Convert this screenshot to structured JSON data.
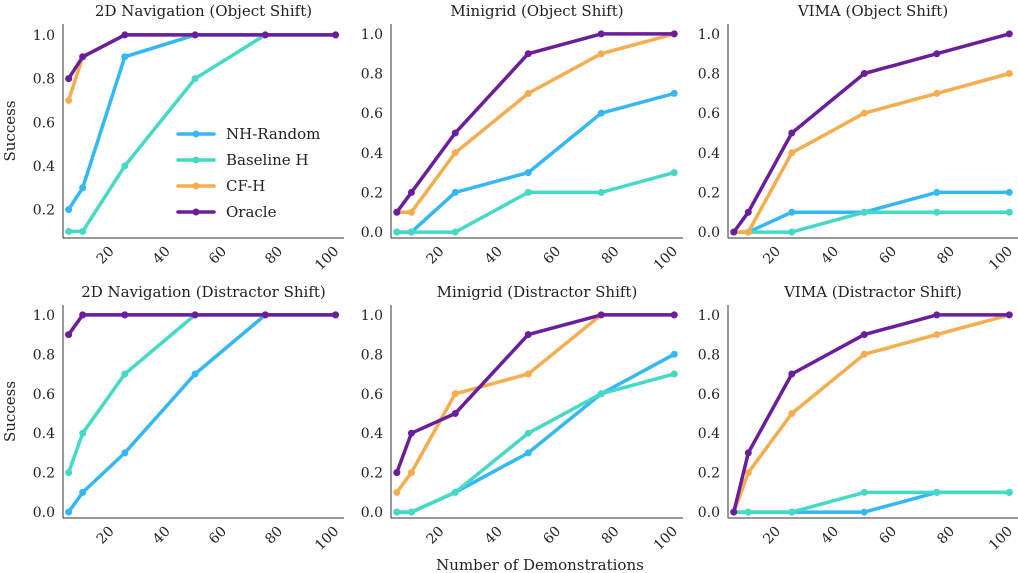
{
  "figure": {
    "shared_xlabel": "Number of Demonstrations",
    "colors": {
      "NH-Random": "#33b8f5",
      "Baseline H": "#45d9c6",
      "CF-H": "#f5ad4f",
      "Oracle": "#6a1e9c"
    }
  },
  "chart_data": [
    {
      "type": "line",
      "title": "2D Navigation (Object Shift)",
      "ylabel": "Success",
      "xlabel": "",
      "x": [
        5,
        10,
        25,
        50,
        75,
        100
      ],
      "xticks": [
        "20",
        "40",
        "60",
        "80",
        "100"
      ],
      "yticks": [
        "0.2",
        "0.4",
        "0.6",
        "0.8",
        "1.0"
      ],
      "xlim": [
        3,
        103
      ],
      "ylim": [
        0.07,
        1.05
      ],
      "legend": "center-right",
      "grid": false,
      "series": [
        {
          "name": "NH-Random",
          "values": [
            0.2,
            0.3,
            0.9,
            1.0,
            1.0,
            1.0
          ]
        },
        {
          "name": "Baseline H",
          "values": [
            0.1,
            0.1,
            0.4,
            0.8,
            1.0,
            1.0
          ]
        },
        {
          "name": "CF-H",
          "values": [
            0.7,
            0.9,
            1.0,
            1.0,
            1.0,
            1.0
          ]
        },
        {
          "name": "Oracle",
          "values": [
            0.8,
            0.9,
            1.0,
            1.0,
            1.0,
            1.0
          ]
        }
      ]
    },
    {
      "type": "line",
      "title": "Minigrid (Object Shift)",
      "ylabel": "",
      "xlabel": "",
      "x": [
        5,
        10,
        25,
        50,
        75,
        100
      ],
      "xticks": [
        "20",
        "40",
        "60",
        "80",
        "100"
      ],
      "yticks": [
        "0.0",
        "0.2",
        "0.4",
        "0.6",
        "0.8",
        "1.0"
      ],
      "xlim": [
        3,
        103
      ],
      "ylim": [
        -0.03,
        1.05
      ],
      "grid": false,
      "series": [
        {
          "name": "NH-Random",
          "values": [
            0.0,
            0.0,
            0.2,
            0.3,
            0.6,
            0.7
          ]
        },
        {
          "name": "Baseline H",
          "values": [
            0.0,
            0.0,
            0.0,
            0.2,
            0.2,
            0.3
          ]
        },
        {
          "name": "CF-H",
          "values": [
            0.1,
            0.1,
            0.4,
            0.7,
            0.9,
            1.0
          ]
        },
        {
          "name": "Oracle",
          "values": [
            0.1,
            0.2,
            0.5,
            0.9,
            1.0,
            1.0
          ]
        }
      ]
    },
    {
      "type": "line",
      "title": "VIMA (Object Shift)",
      "ylabel": "",
      "xlabel": "",
      "x": [
        5,
        10,
        25,
        50,
        75,
        100
      ],
      "xticks": [
        "20",
        "40",
        "60",
        "80",
        "100"
      ],
      "yticks": [
        "0.0",
        "0.2",
        "0.4",
        "0.6",
        "0.8",
        "1.0"
      ],
      "xlim": [
        3,
        103
      ],
      "ylim": [
        -0.03,
        1.05
      ],
      "grid": false,
      "series": [
        {
          "name": "NH-Random",
          "values": [
            0.0,
            0.0,
            0.1,
            0.1,
            0.2,
            0.2
          ]
        },
        {
          "name": "Baseline H",
          "values": [
            0.0,
            0.0,
            0.0,
            0.1,
            0.1,
            0.1
          ]
        },
        {
          "name": "CF-H",
          "values": [
            0.0,
            0.0,
            0.4,
            0.6,
            0.7,
            0.8
          ]
        },
        {
          "name": "Oracle",
          "values": [
            0.0,
            0.1,
            0.5,
            0.8,
            0.9,
            1.0
          ]
        }
      ]
    },
    {
      "type": "line",
      "title": "2D Navigation (Distractor Shift)",
      "ylabel": "Success",
      "xlabel": "",
      "x": [
        5,
        10,
        25,
        50,
        75,
        100
      ],
      "xticks": [
        "20",
        "40",
        "60",
        "80",
        "100"
      ],
      "yticks": [
        "0.0",
        "0.2",
        "0.4",
        "0.6",
        "0.8",
        "1.0"
      ],
      "xlim": [
        3,
        103
      ],
      "ylim": [
        -0.03,
        1.05
      ],
      "grid": false,
      "series": [
        {
          "name": "NH-Random",
          "values": [
            0.0,
            0.1,
            0.3,
            0.7,
            1.0,
            1.0
          ]
        },
        {
          "name": "Baseline H",
          "values": [
            0.2,
            0.4,
            0.7,
            1.0,
            1.0,
            1.0
          ]
        },
        {
          "name": "CF-H",
          "values": [
            0.9,
            1.0,
            1.0,
            1.0,
            1.0,
            1.0
          ]
        },
        {
          "name": "Oracle",
          "values": [
            0.9,
            1.0,
            1.0,
            1.0,
            1.0,
            1.0
          ]
        }
      ]
    },
    {
      "type": "line",
      "title": "Minigrid (Distractor Shift)",
      "ylabel": "",
      "xlabel": "Number of Demonstrations",
      "x": [
        5,
        10,
        25,
        50,
        75,
        100
      ],
      "xticks": [
        "20",
        "40",
        "60",
        "80",
        "100"
      ],
      "yticks": [
        "0.0",
        "0.2",
        "0.4",
        "0.6",
        "0.8",
        "1.0"
      ],
      "xlim": [
        3,
        103
      ],
      "ylim": [
        -0.03,
        1.05
      ],
      "grid": false,
      "series": [
        {
          "name": "NH-Random",
          "values": [
            0.0,
            0.0,
            0.1,
            0.3,
            0.6,
            0.8
          ]
        },
        {
          "name": "Baseline H",
          "values": [
            0.0,
            0.0,
            0.1,
            0.4,
            0.6,
            0.7
          ]
        },
        {
          "name": "CF-H",
          "values": [
            0.1,
            0.2,
            0.6,
            0.7,
            1.0,
            1.0
          ]
        },
        {
          "name": "Oracle",
          "values": [
            0.2,
            0.4,
            0.5,
            0.9,
            1.0,
            1.0
          ]
        }
      ]
    },
    {
      "type": "line",
      "title": "VIMA (Distractor Shift)",
      "ylabel": "",
      "xlabel": "",
      "x": [
        5,
        10,
        25,
        50,
        75,
        100
      ],
      "xticks": [
        "20",
        "40",
        "60",
        "80",
        "100"
      ],
      "yticks": [
        "0.0",
        "0.2",
        "0.4",
        "0.6",
        "0.8",
        "1.0"
      ],
      "xlim": [
        3,
        103
      ],
      "ylim": [
        -0.03,
        1.05
      ],
      "grid": false,
      "series": [
        {
          "name": "NH-Random",
          "values": [
            0.0,
            0.0,
            0.0,
            0.0,
            0.1,
            0.1
          ]
        },
        {
          "name": "Baseline H",
          "values": [
            0.0,
            0.0,
            0.0,
            0.1,
            0.1,
            0.1
          ]
        },
        {
          "name": "CF-H",
          "values": [
            0.0,
            0.2,
            0.5,
            0.8,
            0.9,
            1.0
          ]
        },
        {
          "name": "Oracle",
          "values": [
            0.0,
            0.3,
            0.7,
            0.9,
            1.0,
            1.0
          ]
        }
      ]
    }
  ]
}
